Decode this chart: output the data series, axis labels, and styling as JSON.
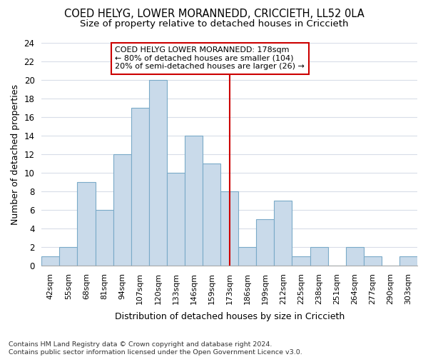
{
  "title_line1": "COED HELYG, LOWER MORANNEDD, CRICCIETH, LL52 0LA",
  "title_line2": "Size of property relative to detached houses in Criccieth",
  "xlabel": "Distribution of detached houses by size in Criccieth",
  "ylabel": "Number of detached properties",
  "bar_labels": [
    "42sqm",
    "55sqm",
    "68sqm",
    "81sqm",
    "94sqm",
    "107sqm",
    "120sqm",
    "133sqm",
    "146sqm",
    "159sqm",
    "173sqm",
    "186sqm",
    "199sqm",
    "212sqm",
    "225sqm",
    "238sqm",
    "251sqm",
    "264sqm",
    "277sqm",
    "290sqm",
    "303sqm"
  ],
  "bar_values": [
    1,
    2,
    9,
    6,
    12,
    17,
    20,
    10,
    14,
    11,
    8,
    2,
    5,
    7,
    1,
    2,
    0,
    2,
    1,
    0,
    1
  ],
  "bar_color": "#c9daea",
  "bar_edge_color": "#7aaac8",
  "vline_x": 10.5,
  "vline_color": "#cc0000",
  "annotation_text": "COED HELYG LOWER MORANNEDD: 178sqm\n← 80% of detached houses are smaller (104)\n20% of semi-detached houses are larger (26) →",
  "annotation_box_color": "#cc0000",
  "ylim": [
    0,
    24
  ],
  "yticks": [
    0,
    2,
    4,
    6,
    8,
    10,
    12,
    14,
    16,
    18,
    20,
    22,
    24
  ],
  "footer_text": "Contains HM Land Registry data © Crown copyright and database right 2024.\nContains public sector information licensed under the Open Government Licence v3.0.",
  "bg_color": "#ffffff",
  "plot_bg_color": "#ffffff",
  "grid_color": "#d8dde8"
}
